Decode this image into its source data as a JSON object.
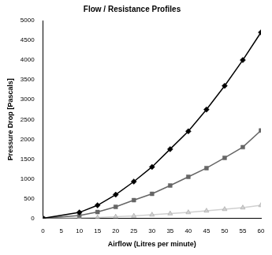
{
  "chart_data": {
    "type": "line",
    "title": "Flow / Resistance Profiles",
    "x_label": "Airflow (Litres per minute)",
    "y_label": "Pressure Drop [Pascals]",
    "x": [
      0,
      10,
      15,
      20,
      25,
      30,
      35,
      40,
      45,
      50,
      55,
      60
    ],
    "series": [
      {
        "color": "#000000",
        "marker": "diamond",
        "values": [
          0,
          150,
          330,
          600,
          930,
          1300,
          1750,
          2200,
          2750,
          3350,
          4000,
          4700
        ]
      },
      {
        "color": "#666666",
        "marker": "square",
        "values": [
          0,
          70,
          160,
          290,
          460,
          620,
          830,
          1050,
          1270,
          1530,
          1800,
          2220
        ]
      },
      {
        "color": "#d0d0d0",
        "marker": "triangle",
        "values": [
          0,
          10,
          20,
          40,
          60,
          90,
          120,
          150,
          190,
          230,
          270,
          330
        ]
      }
    ],
    "xlim": [
      0,
      60
    ],
    "xticks": [
      0,
      5,
      10,
      15,
      20,
      25,
      30,
      35,
      40,
      45,
      50,
      55,
      60
    ],
    "ylim": [
      0,
      5000
    ],
    "yticks": [
      0,
      500,
      1000,
      1500,
      2000,
      2500,
      3000,
      3500,
      4000,
      4500,
      5000
    ],
    "grid": false
  }
}
